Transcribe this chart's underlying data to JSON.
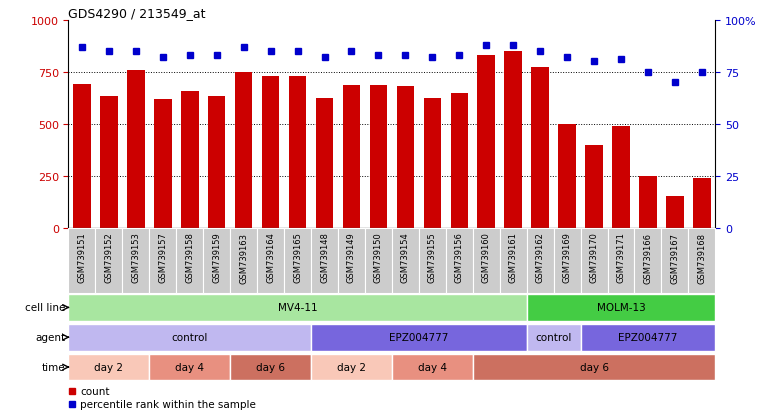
{
  "title": "GDS4290 / 213549_at",
  "samples": [
    "GSM739151",
    "GSM739152",
    "GSM739153",
    "GSM739157",
    "GSM739158",
    "GSM739159",
    "GSM739163",
    "GSM739164",
    "GSM739165",
    "GSM739148",
    "GSM739149",
    "GSM739150",
    "GSM739154",
    "GSM739155",
    "GSM739156",
    "GSM739160",
    "GSM739161",
    "GSM739162",
    "GSM739169",
    "GSM739170",
    "GSM739171",
    "GSM739166",
    "GSM739167",
    "GSM739168"
  ],
  "counts": [
    690,
    635,
    760,
    620,
    660,
    635,
    750,
    730,
    730,
    625,
    685,
    685,
    680,
    625,
    650,
    830,
    850,
    775,
    500,
    400,
    490,
    250,
    155,
    240
  ],
  "percentiles": [
    87,
    85,
    85,
    82,
    83,
    83,
    87,
    85,
    85,
    82,
    85,
    83,
    83,
    82,
    83,
    88,
    88,
    85,
    82,
    80,
    81,
    75,
    70,
    75
  ],
  "bar_color": "#cc0000",
  "dot_color": "#0000cc",
  "ylim_left": [
    0,
    1000
  ],
  "ylim_right": [
    0,
    100
  ],
  "yticks_left": [
    0,
    250,
    500,
    750,
    1000
  ],
  "yticks_right": [
    0,
    25,
    50,
    75,
    100
  ],
  "ytick_labels_left": [
    "0",
    "250",
    "500",
    "750",
    "1000"
  ],
  "ytick_labels_right": [
    "0",
    "25",
    "50",
    "75",
    "100%"
  ],
  "grid_values": [
    250,
    500,
    750
  ],
  "cell_line_row": [
    {
      "label": "MV4-11",
      "start": 0,
      "end": 17,
      "color": "#a8e6a0"
    },
    {
      "label": "MOLM-13",
      "start": 17,
      "end": 24,
      "color": "#44cc44"
    }
  ],
  "agent_row": [
    {
      "label": "control",
      "start": 0,
      "end": 9,
      "color": "#c0b8f0"
    },
    {
      "label": "EPZ004777",
      "start": 9,
      "end": 17,
      "color": "#7766dd"
    },
    {
      "label": "control",
      "start": 17,
      "end": 19,
      "color": "#c0b8f0"
    },
    {
      "label": "EPZ004777",
      "start": 19,
      "end": 24,
      "color": "#7766dd"
    }
  ],
  "time_row": [
    {
      "label": "day 2",
      "start": 0,
      "end": 3,
      "color": "#f9c8b8"
    },
    {
      "label": "day 4",
      "start": 3,
      "end": 6,
      "color": "#e89080"
    },
    {
      "label": "day 6",
      "start": 6,
      "end": 9,
      "color": "#cc7060"
    },
    {
      "label": "day 2",
      "start": 9,
      "end": 12,
      "color": "#f9c8b8"
    },
    {
      "label": "day 4",
      "start": 12,
      "end": 15,
      "color": "#e89080"
    },
    {
      "label": "day 6",
      "start": 15,
      "end": 24,
      "color": "#cc7060"
    }
  ],
  "bg_color": "#ffffff",
  "tick_bg_color": "#cccccc"
}
